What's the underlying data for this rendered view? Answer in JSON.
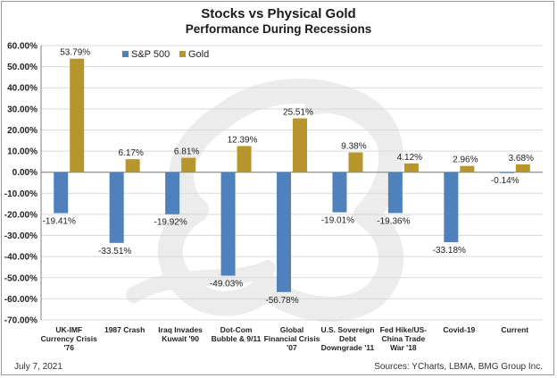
{
  "header": {
    "title": "Stocks vs Physical Gold",
    "subtitle": "Performance During Recessions"
  },
  "footer": {
    "date": "July 7, 2021",
    "sources": "Sources: YCharts, LBMA, BMG Group Inc."
  },
  "colors": {
    "sp500": "#4f81bd",
    "gold": "#b8962e",
    "grid": "#d9d9d9",
    "watermark": "#ececec"
  },
  "chart_data": {
    "type": "bar",
    "title": "Stocks vs Physical Gold",
    "subtitle": "Performance During Recessions",
    "categories": [
      [
        "UK-IMF",
        "Currency Crisis",
        "'76"
      ],
      [
        "1987 Crash"
      ],
      [
        "Iraq Invades",
        "Kuwait '90"
      ],
      [
        "Dot-Com",
        "Bubble & 9/11"
      ],
      [
        "Global",
        "Financial Crisis",
        "'07"
      ],
      [
        "U.S. Sovereign",
        "Debt",
        "Downgrade '11"
      ],
      [
        "Fed Hike/US-",
        "China Trade",
        "War '18"
      ],
      [
        "Covid-19"
      ],
      [
        "Current"
      ]
    ],
    "series": [
      {
        "name": "S&P 500",
        "values": [
          -19.41,
          -33.51,
          -19.92,
          -49.03,
          -56.78,
          -19.01,
          -19.36,
          -33.18,
          -0.14
        ],
        "labels": [
          "-19.41%",
          "-33.51%",
          "-19.92%",
          "-49.03%",
          "-56.78%",
          "-19.01%",
          "-19.36%",
          "-33.18%",
          "-0.14%"
        ]
      },
      {
        "name": "Gold",
        "values": [
          53.79,
          6.17,
          6.81,
          12.39,
          25.51,
          9.38,
          4.12,
          2.96,
          3.68
        ],
        "labels": [
          "53.79%",
          "6.17%",
          "6.81%",
          "12.39%",
          "25.51%",
          "9.38%",
          "4.12%",
          "2.96%",
          "3.68%"
        ]
      }
    ],
    "ylim": [
      -70,
      60
    ],
    "yticks": [
      60,
      50,
      40,
      30,
      20,
      10,
      0,
      -10,
      -20,
      -30,
      -40,
      -50,
      -60,
      -70
    ],
    "ytick_labels": [
      "60.00%",
      "50.00%",
      "40.00%",
      "30.00%",
      "20.00%",
      "10.00%",
      "0.00%",
      "-10.00%",
      "-20.00%",
      "-30.00%",
      "-40.00%",
      "-50.00%",
      "-60.00%",
      "-70.00%"
    ],
    "legend_position": "top-left",
    "grid": true
  }
}
